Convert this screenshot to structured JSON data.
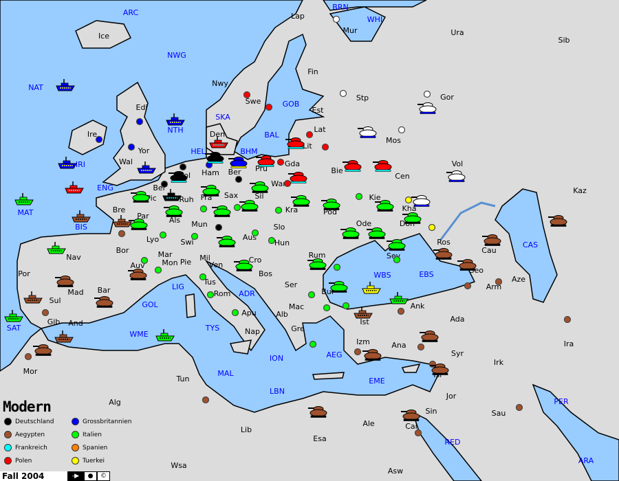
{
  "variant_title": "Modern",
  "season": "Fall 2004",
  "controls": [
    {
      "name": "next-phase-button",
      "icon": "arrow-right-icon",
      "glyph": "-▶"
    },
    {
      "name": "dot-button",
      "icon": "dot-icon",
      "glyph": "●"
    },
    {
      "name": "copyright-button",
      "icon": "copyright-icon",
      "glyph": "©"
    }
  ],
  "colors": {
    "sea": "#99ccff",
    "land": "#dcdcdc",
    "sea_label": "#0000ff"
  },
  "powers": {
    "deutschland": {
      "name": "Deutschland",
      "color": "#000000",
      "stripe": "#00ffff"
    },
    "grossbritannien": {
      "name": "Grossbritannien",
      "color": "#0000ff",
      "stripe": "#ffff00"
    },
    "aegypten": {
      "name": "Aegypten",
      "color": "#a0522d",
      "stripe": "#000000"
    },
    "italien": {
      "name": "Italien",
      "color": "#00ff00",
      "stripe": "#000000"
    },
    "frankreich": {
      "name": "Frankreich",
      "color": "#00ffff",
      "stripe": "#000000"
    },
    "spanien": {
      "name": "Spanien",
      "color": "#ff8000",
      "stripe": "#000000"
    },
    "polen": {
      "name": "Polen",
      "color": "#ff0000",
      "stripe": "#00ffff"
    },
    "tuerkei": {
      "name": "Tuerkei",
      "color": "#ffff00",
      "stripe": "#000000"
    },
    "white": {
      "color": "#ffffff",
      "stripe": "#0000ff"
    }
  },
  "legend": [
    "deutschland",
    "grossbritannien",
    "aegypten",
    "italien",
    "frankreich",
    "spanien",
    "polen",
    "tuerkei"
  ],
  "sea_labels": [
    "ARC",
    "BRN",
    "WHI",
    "NWG",
    "NAT",
    "SKA",
    "GOB",
    "NTH",
    "BAL",
    "HEL",
    "BHM",
    "IRI",
    "ENG",
    "MAT",
    "BIS",
    "CAS",
    "WBS",
    "EBS",
    "LIG",
    "GOL",
    "ADR",
    "SAT",
    "TYS",
    "WME",
    "ION",
    "AEG",
    "MAL",
    "EME",
    "LBN",
    "PER",
    "RED",
    "ARA"
  ],
  "land_labels": [
    "Lap",
    "Mur",
    "Ura",
    "Sib",
    "Ice",
    "Nwy",
    "Fin",
    "Swe",
    "Stp",
    "Gor",
    "Edi",
    "Est",
    "Ire",
    "Yor",
    "Den",
    "Lat",
    "Mos",
    "Wal",
    "Ham",
    "Ber",
    "Gda",
    "Lit",
    "Bie",
    "Pru",
    "Vol",
    "Cen",
    "Kaz",
    "Hol",
    "Bel",
    "Ruh",
    "Pic",
    "Fra",
    "Sax",
    "Sil",
    "War",
    "Kra",
    "Pod",
    "Kie",
    "Kha",
    "Bre",
    "Par",
    "Als",
    "Cze",
    "Mun",
    "Slo",
    "Ode",
    "Don",
    "Ros",
    "Cau",
    "Bor",
    "Lyo",
    "Swi",
    "Aus",
    "Hun",
    "Mar",
    "Mil",
    "Pie",
    "Ven",
    "Cro",
    "Rum",
    "Sev",
    "Geo",
    "Aze",
    "Arm",
    "Por",
    "Nav",
    "Auv",
    "Mad",
    "Bar",
    "Tus",
    "Bos",
    "Ser",
    "Bul",
    "Rom",
    "Sul",
    "Ank",
    "Gib",
    "And",
    "Mac",
    "Alb",
    "Apu",
    "Nap",
    "Ist",
    "Ada",
    "Gre",
    "Izm",
    "Ana",
    "Syr",
    "Ira",
    "Irk",
    "Mor",
    "Tun",
    "Isr",
    "Jor",
    "Alg",
    "Sin",
    "Sau",
    "Lib",
    "Ale",
    "Cai",
    "Esa",
    "Wsa",
    "Asw",
    "Mon"
  ],
  "units": [
    {
      "type": "army",
      "power": "deutschland"
    },
    {
      "type": "army",
      "power": "deutschland"
    },
    {
      "type": "fleet",
      "power": "deutschland"
    },
    {
      "type": "fleet",
      "power": "grossbritannien"
    },
    {
      "type": "fleet",
      "power": "grossbritannien"
    },
    {
      "type": "fleet",
      "power": "grossbritannien"
    },
    {
      "type": "fleet",
      "power": "grossbritannien"
    },
    {
      "type": "army",
      "power": "grossbritannien"
    },
    {
      "type": "fleet",
      "power": "polen"
    },
    {
      "type": "fleet",
      "power": "polen"
    },
    {
      "type": "army",
      "power": "polen"
    },
    {
      "type": "army",
      "power": "polen"
    },
    {
      "type": "army",
      "power": "polen"
    },
    {
      "type": "army",
      "power": "polen"
    },
    {
      "type": "army",
      "power": "polen"
    },
    {
      "type": "army",
      "power": "white"
    },
    {
      "type": "army",
      "power": "white"
    },
    {
      "type": "army",
      "power": "white"
    },
    {
      "type": "army",
      "power": "white"
    },
    {
      "type": "fleet",
      "power": "italien"
    },
    {
      "type": "fleet",
      "power": "italien"
    },
    {
      "type": "fleet",
      "power": "italien"
    },
    {
      "type": "fleet",
      "power": "italien"
    },
    {
      "type": "fleet",
      "power": "italien"
    },
    {
      "type": "army",
      "power": "italien"
    },
    {
      "type": "army",
      "power": "italien"
    },
    {
      "type": "army",
      "power": "italien"
    },
    {
      "type": "army",
      "power": "italien"
    },
    {
      "type": "army",
      "power": "italien"
    },
    {
      "type": "army",
      "power": "italien"
    },
    {
      "type": "army",
      "power": "italien"
    },
    {
      "type": "army",
      "power": "italien"
    },
    {
      "type": "army",
      "power": "italien"
    },
    {
      "type": "army",
      "power": "italien"
    },
    {
      "type": "army",
      "power": "italien"
    },
    {
      "type": "army",
      "power": "italien"
    },
    {
      "type": "army",
      "power": "italien"
    },
    {
      "type": "army",
      "power": "italien"
    },
    {
      "type": "army",
      "power": "italien"
    },
    {
      "type": "army",
      "power": "italien"
    },
    {
      "type": "army",
      "power": "italien"
    },
    {
      "type": "army",
      "power": "italien"
    },
    {
      "type": "fleet",
      "power": "aegypten"
    },
    {
      "type": "fleet",
      "power": "aegypten"
    },
    {
      "type": "fleet",
      "power": "aegypten"
    },
    {
      "type": "fleet",
      "power": "aegypten"
    },
    {
      "type": "fleet",
      "power": "aegypten"
    },
    {
      "type": "army",
      "power": "aegypten"
    },
    {
      "type": "army",
      "power": "aegypten"
    },
    {
      "type": "army",
      "power": "aegypten"
    },
    {
      "type": "army",
      "power": "aegypten"
    },
    {
      "type": "army",
      "power": "aegypten"
    },
    {
      "type": "army",
      "power": "aegypten"
    },
    {
      "type": "army",
      "power": "aegypten"
    },
    {
      "type": "army",
      "power": "aegypten"
    },
    {
      "type": "army",
      "power": "aegypten"
    },
    {
      "type": "army",
      "power": "aegypten"
    },
    {
      "type": "army",
      "power": "aegypten"
    },
    {
      "type": "army",
      "power": "aegypten"
    },
    {
      "type": "army",
      "power": "aegypten"
    },
    {
      "type": "fleet",
      "power": "tuerkei"
    }
  ],
  "supply_centers": [
    "deutschland",
    "deutschland",
    "deutschland",
    "deutschland",
    "grossbritannien",
    "grossbritannien",
    "grossbritannien",
    "grossbritannien",
    "polen",
    "polen",
    "polen",
    "polen",
    "polen",
    "polen",
    "white",
    "white",
    "white",
    "white",
    "tuerkei",
    "tuerkei",
    "italien",
    "italien",
    "italien",
    "italien",
    "italien",
    "italien",
    "italien",
    "italien",
    "italien",
    "italien",
    "italien",
    "italien",
    "italien",
    "italien",
    "italien",
    "italien",
    "italien",
    "italien",
    "italien",
    "italien",
    "aegypten",
    "aegypten",
    "aegypten",
    "aegypten",
    "aegypten",
    "aegypten",
    "aegypten",
    "aegypten",
    "aegypten",
    "aegypten",
    "aegypten",
    "aegypten",
    "aegypten"
  ]
}
